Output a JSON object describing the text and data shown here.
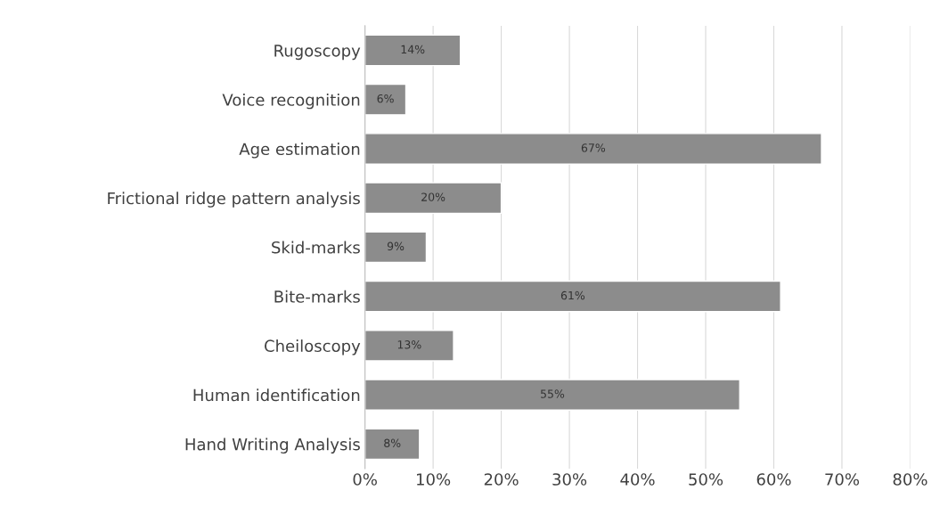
{
  "chart_data": {
    "type": "bar",
    "orientation": "horizontal",
    "categories": [
      "Rugoscopy",
      "Voice recognition",
      "Age estimation",
      "Frictional ridge pattern analysis",
      "Skid-marks",
      "Bite-marks",
      "Cheiloscopy",
      "Human identification",
      "Hand Writing Analysis"
    ],
    "values": [
      14,
      6,
      67,
      20,
      9,
      61,
      13,
      55,
      8
    ],
    "value_labels": [
      "14%",
      "6%",
      "67%",
      "20%",
      "9%",
      "61%",
      "13%",
      "55%",
      "8%"
    ],
    "color": "#8c8c8c",
    "xlim": [
      0,
      80
    ],
    "xticks": [
      {
        "value": 0,
        "label": "0%"
      },
      {
        "value": 10,
        "label": "10%"
      },
      {
        "value": 20,
        "label": "20%"
      },
      {
        "value": 30,
        "label": "30%"
      },
      {
        "value": 40,
        "label": "40%"
      },
      {
        "value": 50,
        "label": "50%"
      },
      {
        "value": 60,
        "label": "60%"
      },
      {
        "value": 70,
        "label": "70%"
      },
      {
        "value": 80,
        "label": "80%"
      }
    ],
    "grid": "x"
  }
}
